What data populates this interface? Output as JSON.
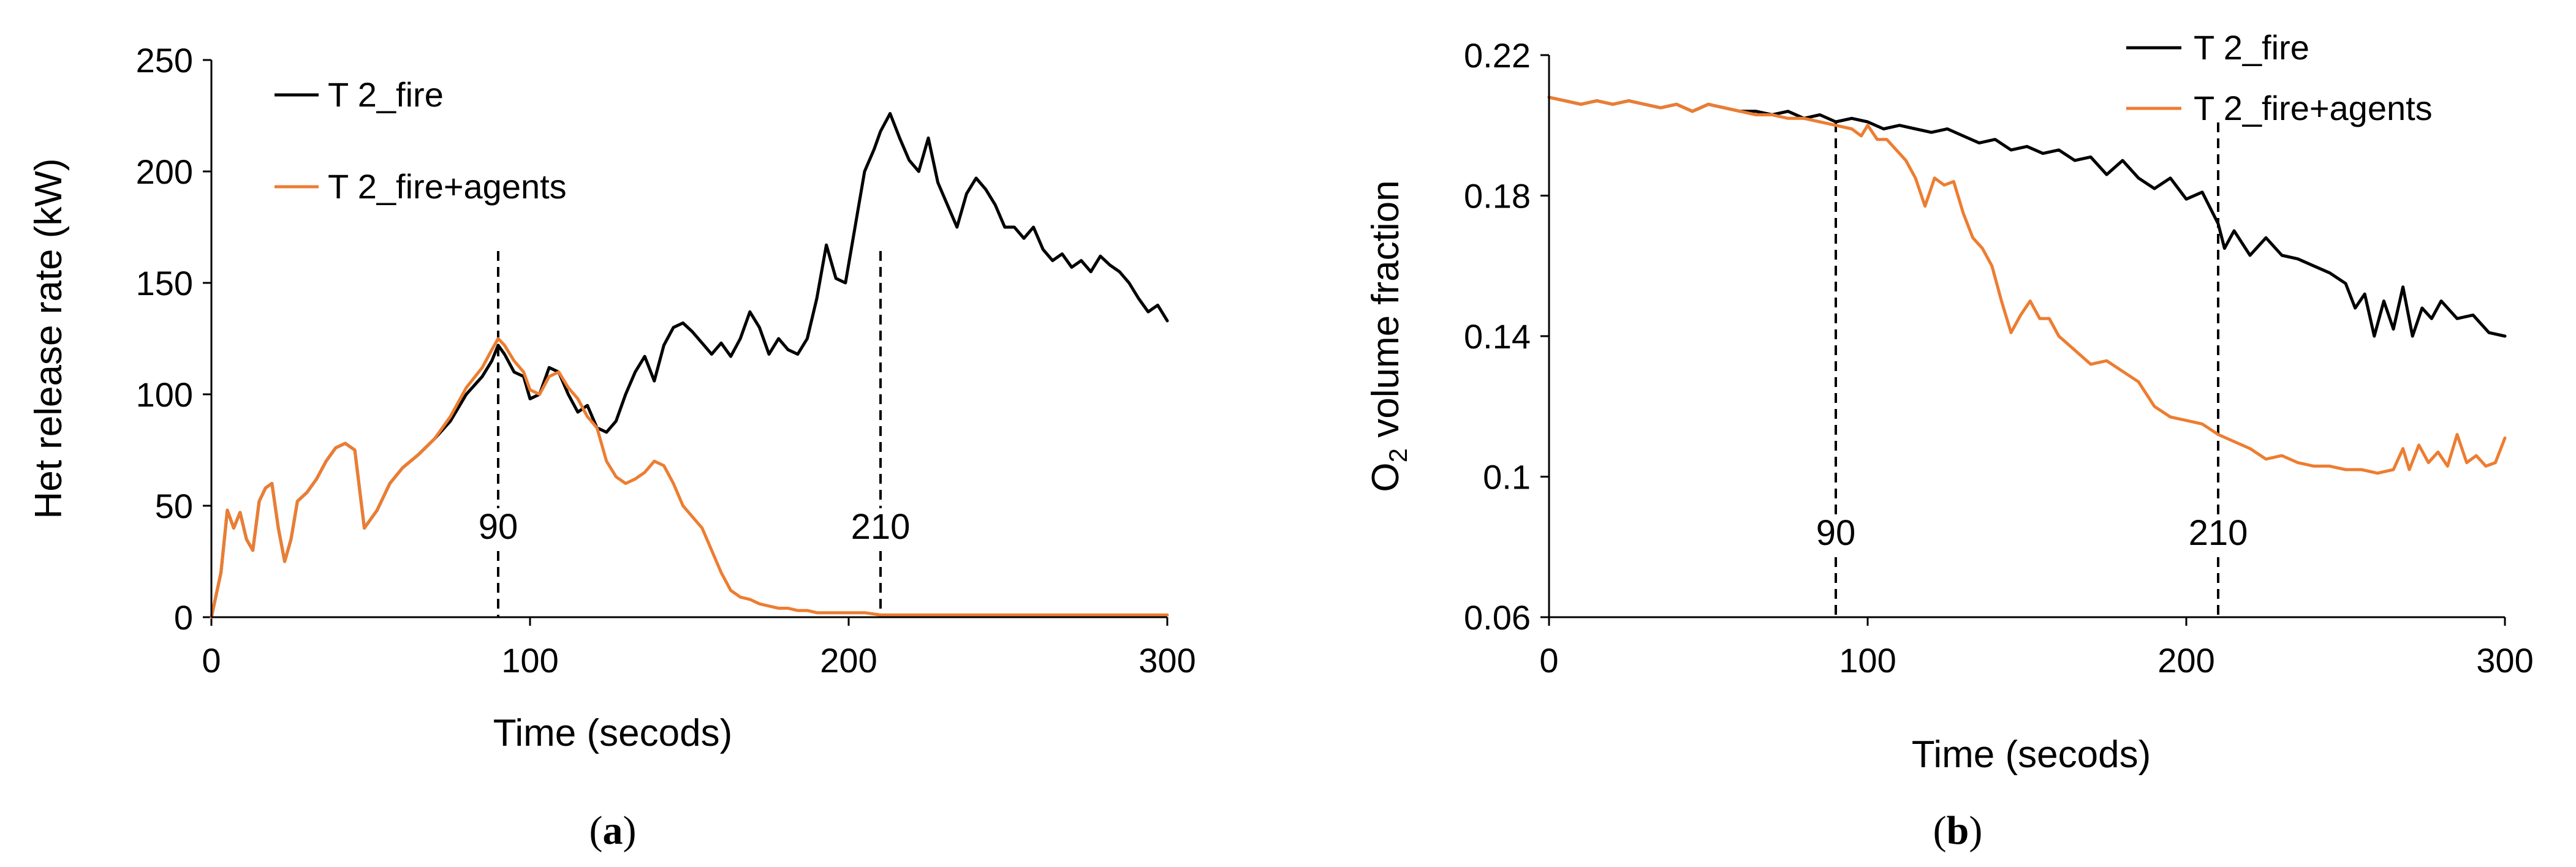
{
  "colors": {
    "fire": "#000000",
    "agents": "#ED7D31",
    "marker": "#000000"
  },
  "chart_data": [
    {
      "type": "line",
      "panel": "a",
      "caption_open": "(",
      "caption_letter": "a",
      "caption_close": ")",
      "xlabel": "Time (secods)",
      "ylabel": "Het release rate (kW)",
      "xlim": [
        0,
        300
      ],
      "ylim": [
        0,
        250
      ],
      "xticks": [
        0,
        100,
        200,
        300
      ],
      "yticks": [
        0,
        50,
        100,
        150,
        200,
        250
      ],
      "legend_position": "top-left",
      "grid": false,
      "markers": [
        {
          "x": 90,
          "label": "90"
        },
        {
          "x": 210,
          "label": "210"
        }
      ],
      "series": [
        {
          "name": "T 2_fire",
          "color": "#000000",
          "x": [
            0,
            3,
            5,
            7,
            9,
            11,
            13,
            15,
            17,
            19,
            21,
            23,
            25,
            27,
            30,
            33,
            36,
            39,
            42,
            45,
            48,
            52,
            56,
            60,
            65,
            70,
            75,
            80,
            85,
            88,
            90,
            92,
            95,
            98,
            100,
            103,
            106,
            109,
            112,
            115,
            118,
            121,
            124,
            127,
            130,
            133,
            136,
            139,
            142,
            145,
            148,
            151,
            154,
            157,
            160,
            163,
            166,
            169,
            172,
            175,
            178,
            181,
            184,
            187,
            190,
            193,
            196,
            199,
            202,
            205,
            208,
            210,
            213,
            216,
            219,
            222,
            225,
            228,
            231,
            234,
            237,
            240,
            243,
            246,
            249,
            252,
            255,
            258,
            261,
            264,
            267,
            270,
            273,
            276,
            279,
            282,
            285,
            288,
            291,
            294,
            297,
            300
          ],
          "y": [
            0,
            20,
            48,
            40,
            47,
            35,
            30,
            52,
            58,
            60,
            40,
            25,
            35,
            52,
            56,
            62,
            70,
            76,
            78,
            75,
            40,
            48,
            60,
            67,
            73,
            80,
            88,
            100,
            108,
            115,
            122,
            118,
            110,
            108,
            98,
            100,
            112,
            110,
            100,
            92,
            95,
            85,
            83,
            88,
            100,
            110,
            117,
            106,
            122,
            130,
            132,
            128,
            123,
            118,
            123,
            117,
            125,
            137,
            130,
            118,
            125,
            120,
            118,
            125,
            143,
            167,
            152,
            150,
            175,
            200,
            210,
            218,
            226,
            215,
            205,
            200,
            215,
            195,
            185,
            175,
            190,
            197,
            192,
            185,
            175,
            175,
            170,
            175,
            165,
            160,
            163,
            157,
            160,
            155,
            162,
            158,
            155,
            150,
            143,
            137,
            140,
            133
          ]
        },
        {
          "name": "T 2_fire+agents",
          "color": "#ED7D31",
          "x": [
            0,
            3,
            5,
            7,
            9,
            11,
            13,
            15,
            17,
            19,
            21,
            23,
            25,
            27,
            30,
            33,
            36,
            39,
            42,
            45,
            48,
            52,
            56,
            60,
            65,
            70,
            75,
            80,
            85,
            88,
            90,
            92,
            95,
            98,
            100,
            103,
            106,
            109,
            112,
            115,
            118,
            121,
            124,
            127,
            130,
            133,
            136,
            139,
            142,
            145,
            148,
            151,
            154,
            157,
            160,
            163,
            166,
            169,
            172,
            175,
            178,
            181,
            184,
            187,
            190,
            195,
            200,
            205,
            210,
            220,
            230,
            240,
            250,
            260,
            270,
            280,
            290,
            300
          ],
          "y": [
            0,
            20,
            48,
            40,
            47,
            35,
            30,
            52,
            58,
            60,
            40,
            25,
            35,
            52,
            56,
            62,
            70,
            76,
            78,
            75,
            40,
            48,
            60,
            67,
            73,
            80,
            90,
            103,
            112,
            120,
            125,
            122,
            115,
            110,
            102,
            100,
            108,
            110,
            103,
            98,
            90,
            85,
            70,
            63,
            60,
            62,
            65,
            70,
            68,
            60,
            50,
            45,
            40,
            30,
            20,
            12,
            9,
            8,
            6,
            5,
            4,
            4,
            3,
            3,
            2,
            2,
            2,
            2,
            1,
            1,
            1,
            1,
            1,
            1,
            1,
            1,
            1,
            1
          ]
        }
      ]
    },
    {
      "type": "line",
      "panel": "b",
      "caption_open": "(",
      "caption_letter": "b",
      "caption_close": ")",
      "xlabel": "Time (secods)",
      "ylabel_prefix": "O",
      "ylabel_sub": "2",
      "ylabel_suffix": " volume fraction",
      "xlim": [
        0,
        300
      ],
      "ylim": [
        0.06,
        0.22
      ],
      "xticks": [
        0,
        100,
        200,
        300
      ],
      "yticks": [
        0.06,
        0.1,
        0.14,
        0.18,
        0.22
      ],
      "ytick_labels": [
        "0.06",
        "0.1",
        "0.14",
        "0.18",
        "0.22"
      ],
      "legend_position": "top-right",
      "grid": false,
      "markers": [
        {
          "x": 90,
          "label": "90"
        },
        {
          "x": 210,
          "label": "210"
        }
      ],
      "series": [
        {
          "name": "T 2_fire",
          "color": "#000000",
          "x": [
            0,
            5,
            10,
            15,
            20,
            25,
            30,
            35,
            40,
            45,
            50,
            55,
            60,
            65,
            70,
            75,
            80,
            85,
            90,
            95,
            100,
            105,
            110,
            115,
            120,
            125,
            130,
            135,
            140,
            145,
            150,
            155,
            160,
            165,
            170,
            175,
            180,
            185,
            190,
            195,
            200,
            205,
            210,
            212,
            215,
            220,
            225,
            230,
            235,
            240,
            245,
            250,
            253,
            256,
            259,
            262,
            265,
            268,
            271,
            274,
            277,
            280,
            285,
            290,
            295,
            300
          ],
          "y": [
            0.208,
            0.207,
            0.206,
            0.207,
            0.206,
            0.207,
            0.206,
            0.205,
            0.206,
            0.204,
            0.206,
            0.205,
            0.204,
            0.204,
            0.203,
            0.204,
            0.202,
            0.203,
            0.201,
            0.202,
            0.201,
            0.199,
            0.2,
            0.199,
            0.198,
            0.199,
            0.197,
            0.195,
            0.196,
            0.193,
            0.194,
            0.192,
            0.193,
            0.19,
            0.191,
            0.186,
            0.19,
            0.185,
            0.182,
            0.185,
            0.179,
            0.181,
            0.172,
            0.165,
            0.17,
            0.163,
            0.168,
            0.163,
            0.162,
            0.16,
            0.158,
            0.155,
            0.148,
            0.152,
            0.14,
            0.15,
            0.142,
            0.154,
            0.14,
            0.148,
            0.145,
            0.15,
            0.145,
            0.146,
            0.141,
            0.14
          ]
        },
        {
          "name": "T 2_fire+agents",
          "color": "#ED7D31",
          "x": [
            0,
            5,
            10,
            15,
            20,
            25,
            30,
            35,
            40,
            45,
            50,
            55,
            60,
            65,
            70,
            75,
            80,
            85,
            90,
            95,
            98,
            100,
            103,
            106,
            109,
            112,
            115,
            118,
            121,
            124,
            127,
            130,
            133,
            136,
            139,
            142,
            145,
            148,
            151,
            154,
            157,
            160,
            165,
            170,
            175,
            180,
            185,
            190,
            195,
            200,
            205,
            210,
            215,
            220,
            225,
            230,
            235,
            240,
            245,
            250,
            255,
            260,
            265,
            268,
            270,
            273,
            276,
            279,
            282,
            285,
            288,
            291,
            294,
            297,
            300
          ],
          "y": [
            0.208,
            0.207,
            0.206,
            0.207,
            0.206,
            0.207,
            0.206,
            0.205,
            0.206,
            0.204,
            0.206,
            0.205,
            0.204,
            0.203,
            0.203,
            0.202,
            0.202,
            0.201,
            0.2,
            0.199,
            0.197,
            0.2,
            0.196,
            0.196,
            0.193,
            0.19,
            0.185,
            0.177,
            0.185,
            0.183,
            0.184,
            0.175,
            0.168,
            0.165,
            0.16,
            0.15,
            0.141,
            0.146,
            0.15,
            0.145,
            0.145,
            0.14,
            0.136,
            0.132,
            0.133,
            0.13,
            0.127,
            0.12,
            0.117,
            0.116,
            0.115,
            0.112,
            0.11,
            0.108,
            0.105,
            0.106,
            0.104,
            0.103,
            0.103,
            0.102,
            0.102,
            0.101,
            0.102,
            0.108,
            0.102,
            0.109,
            0.104,
            0.107,
            0.103,
            0.112,
            0.104,
            0.106,
            0.103,
            0.104,
            0.111
          ]
        }
      ]
    }
  ]
}
